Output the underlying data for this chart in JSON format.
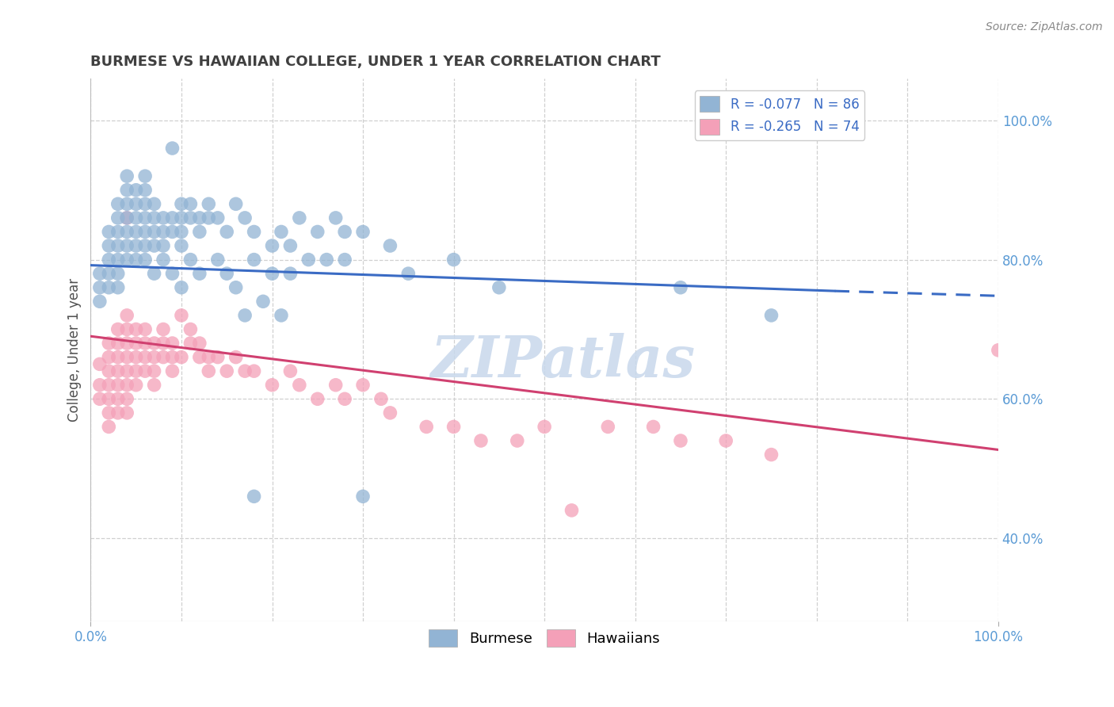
{
  "title": "BURMESE VS HAWAIIAN COLLEGE, UNDER 1 YEAR CORRELATION CHART",
  "source": "Source: ZipAtlas.com",
  "ylabel": "College, Under 1 year",
  "xlim": [
    0.0,
    1.0
  ],
  "ylim": [
    0.28,
    1.06
  ],
  "yticks": [
    0.4,
    0.6,
    0.8,
    1.0
  ],
  "ytick_labels": [
    "40.0%",
    "60.0%",
    "80.0%",
    "100.0%"
  ],
  "xtick_positions": [
    0.0,
    1.0
  ],
  "xtick_labels": [
    "0.0%",
    "100.0%"
  ],
  "burmese_scatter": [
    [
      0.01,
      0.78
    ],
    [
      0.01,
      0.76
    ],
    [
      0.01,
      0.74
    ],
    [
      0.02,
      0.84
    ],
    [
      0.02,
      0.82
    ],
    [
      0.02,
      0.8
    ],
    [
      0.02,
      0.78
    ],
    [
      0.02,
      0.76
    ],
    [
      0.03,
      0.88
    ],
    [
      0.03,
      0.86
    ],
    [
      0.03,
      0.84
    ],
    [
      0.03,
      0.82
    ],
    [
      0.03,
      0.8
    ],
    [
      0.03,
      0.78
    ],
    [
      0.03,
      0.76
    ],
    [
      0.04,
      0.92
    ],
    [
      0.04,
      0.9
    ],
    [
      0.04,
      0.88
    ],
    [
      0.04,
      0.86
    ],
    [
      0.04,
      0.84
    ],
    [
      0.04,
      0.82
    ],
    [
      0.04,
      0.8
    ],
    [
      0.05,
      0.9
    ],
    [
      0.05,
      0.88
    ],
    [
      0.05,
      0.86
    ],
    [
      0.05,
      0.84
    ],
    [
      0.05,
      0.82
    ],
    [
      0.05,
      0.8
    ],
    [
      0.06,
      0.92
    ],
    [
      0.06,
      0.9
    ],
    [
      0.06,
      0.88
    ],
    [
      0.06,
      0.86
    ],
    [
      0.06,
      0.84
    ],
    [
      0.06,
      0.82
    ],
    [
      0.06,
      0.8
    ],
    [
      0.07,
      0.88
    ],
    [
      0.07,
      0.86
    ],
    [
      0.07,
      0.84
    ],
    [
      0.07,
      0.82
    ],
    [
      0.08,
      0.86
    ],
    [
      0.08,
      0.84
    ],
    [
      0.08,
      0.82
    ],
    [
      0.09,
      0.96
    ],
    [
      0.09,
      0.86
    ],
    [
      0.09,
      0.84
    ],
    [
      0.1,
      0.88
    ],
    [
      0.1,
      0.86
    ],
    [
      0.1,
      0.84
    ],
    [
      0.1,
      0.82
    ],
    [
      0.11,
      0.88
    ],
    [
      0.11,
      0.86
    ],
    [
      0.12,
      0.86
    ],
    [
      0.12,
      0.84
    ],
    [
      0.13,
      0.88
    ],
    [
      0.13,
      0.86
    ],
    [
      0.14,
      0.86
    ],
    [
      0.15,
      0.84
    ],
    [
      0.16,
      0.88
    ],
    [
      0.17,
      0.86
    ],
    [
      0.18,
      0.84
    ],
    [
      0.2,
      0.82
    ],
    [
      0.21,
      0.84
    ],
    [
      0.22,
      0.82
    ],
    [
      0.23,
      0.86
    ],
    [
      0.25,
      0.84
    ],
    [
      0.27,
      0.86
    ],
    [
      0.28,
      0.84
    ],
    [
      0.3,
      0.84
    ],
    [
      0.33,
      0.82
    ],
    [
      0.07,
      0.78
    ],
    [
      0.08,
      0.8
    ],
    [
      0.09,
      0.78
    ],
    [
      0.1,
      0.76
    ],
    [
      0.11,
      0.8
    ],
    [
      0.12,
      0.78
    ],
    [
      0.14,
      0.8
    ],
    [
      0.15,
      0.78
    ],
    [
      0.16,
      0.76
    ],
    [
      0.18,
      0.8
    ],
    [
      0.2,
      0.78
    ],
    [
      0.22,
      0.78
    ],
    [
      0.24,
      0.8
    ],
    [
      0.26,
      0.8
    ],
    [
      0.28,
      0.8
    ],
    [
      0.35,
      0.78
    ],
    [
      0.4,
      0.8
    ],
    [
      0.17,
      0.72
    ],
    [
      0.19,
      0.74
    ],
    [
      0.21,
      0.72
    ],
    [
      0.45,
      0.76
    ],
    [
      0.65,
      0.76
    ],
    [
      0.75,
      0.72
    ],
    [
      0.18,
      0.46
    ],
    [
      0.3,
      0.46
    ]
  ],
  "hawaiian_scatter": [
    [
      0.01,
      0.65
    ],
    [
      0.01,
      0.62
    ],
    [
      0.01,
      0.6
    ],
    [
      0.02,
      0.68
    ],
    [
      0.02,
      0.66
    ],
    [
      0.02,
      0.64
    ],
    [
      0.02,
      0.62
    ],
    [
      0.02,
      0.6
    ],
    [
      0.02,
      0.58
    ],
    [
      0.02,
      0.56
    ],
    [
      0.03,
      0.7
    ],
    [
      0.03,
      0.68
    ],
    [
      0.03,
      0.66
    ],
    [
      0.03,
      0.64
    ],
    [
      0.03,
      0.62
    ],
    [
      0.03,
      0.6
    ],
    [
      0.03,
      0.58
    ],
    [
      0.04,
      0.72
    ],
    [
      0.04,
      0.7
    ],
    [
      0.04,
      0.68
    ],
    [
      0.04,
      0.66
    ],
    [
      0.04,
      0.64
    ],
    [
      0.04,
      0.62
    ],
    [
      0.04,
      0.6
    ],
    [
      0.04,
      0.58
    ],
    [
      0.05,
      0.7
    ],
    [
      0.05,
      0.68
    ],
    [
      0.05,
      0.66
    ],
    [
      0.05,
      0.64
    ],
    [
      0.05,
      0.62
    ],
    [
      0.06,
      0.7
    ],
    [
      0.06,
      0.68
    ],
    [
      0.06,
      0.66
    ],
    [
      0.06,
      0.64
    ],
    [
      0.07,
      0.68
    ],
    [
      0.07,
      0.66
    ],
    [
      0.07,
      0.64
    ],
    [
      0.07,
      0.62
    ],
    [
      0.08,
      0.7
    ],
    [
      0.08,
      0.68
    ],
    [
      0.08,
      0.66
    ],
    [
      0.09,
      0.68
    ],
    [
      0.09,
      0.66
    ],
    [
      0.09,
      0.64
    ],
    [
      0.1,
      0.72
    ],
    [
      0.1,
      0.66
    ],
    [
      0.11,
      0.7
    ],
    [
      0.11,
      0.68
    ],
    [
      0.12,
      0.68
    ],
    [
      0.12,
      0.66
    ],
    [
      0.13,
      0.66
    ],
    [
      0.13,
      0.64
    ],
    [
      0.14,
      0.66
    ],
    [
      0.15,
      0.64
    ],
    [
      0.16,
      0.66
    ],
    [
      0.17,
      0.64
    ],
    [
      0.18,
      0.64
    ],
    [
      0.2,
      0.62
    ],
    [
      0.22,
      0.64
    ],
    [
      0.23,
      0.62
    ],
    [
      0.25,
      0.6
    ],
    [
      0.27,
      0.62
    ],
    [
      0.28,
      0.6
    ],
    [
      0.3,
      0.62
    ],
    [
      0.32,
      0.6
    ],
    [
      0.33,
      0.58
    ],
    [
      0.37,
      0.56
    ],
    [
      0.4,
      0.56
    ],
    [
      0.43,
      0.54
    ],
    [
      0.47,
      0.54
    ],
    [
      0.5,
      0.56
    ],
    [
      0.53,
      0.44
    ],
    [
      0.57,
      0.56
    ],
    [
      0.62,
      0.56
    ],
    [
      0.65,
      0.54
    ],
    [
      0.7,
      0.54
    ],
    [
      0.75,
      0.52
    ],
    [
      0.04,
      0.86
    ],
    [
      1.0,
      0.67
    ]
  ],
  "burmese_line_solid": {
    "x0": 0.0,
    "y0": 0.792,
    "x1": 0.82,
    "y1": 0.755
  },
  "burmese_line_dashed": {
    "x0": 0.82,
    "y0": 0.755,
    "x1": 1.0,
    "y1": 0.748
  },
  "hawaiian_line": {
    "x0": 0.0,
    "y0": 0.69,
    "x1": 1.0,
    "y1": 0.527
  },
  "burmese_color": "#92b4d4",
  "hawaiian_color": "#f4a0b8",
  "burmese_line_color": "#3a6bc4",
  "hawaiian_line_color": "#d04070",
  "watermark_text": "ZIPatlas",
  "watermark_color": "#c8d8ec",
  "grid_color": "#d0d0d0",
  "background_color": "#ffffff",
  "legend1_labels": [
    "R = -0.077   N = 86",
    "R = -0.265   N = 74"
  ],
  "legend2_labels": [
    "Burmese",
    "Hawaiians"
  ],
  "title_color": "#404040",
  "axis_tick_color": "#5b9bd5",
  "ylabel_color": "#505050"
}
